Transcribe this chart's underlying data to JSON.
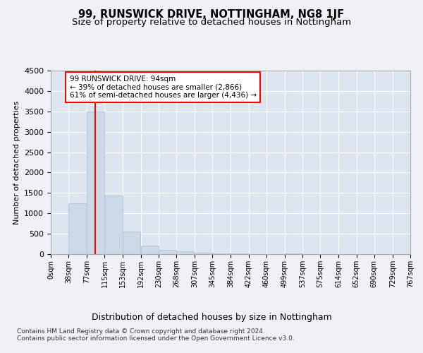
{
  "title": "99, RUNSWICK DRIVE, NOTTINGHAM, NG8 1JF",
  "subtitle": "Size of property relative to detached houses in Nottingham",
  "xlabel": "Distribution of detached houses by size in Nottingham",
  "ylabel": "Number of detached properties",
  "bar_color": "#ccd9e8",
  "bar_edge_color": "#aabdd4",
  "red_line_x": 94,
  "annotation_line1": "99 RUNSWICK DRIVE: 94sqm",
  "annotation_line2": "← 39% of detached houses are smaller (2,866)",
  "annotation_line3": "61% of semi-detached houses are larger (4,436) →",
  "bin_edges": [
    0,
    38,
    77,
    115,
    153,
    192,
    230,
    268,
    307,
    345,
    384,
    422,
    460,
    499,
    537,
    575,
    614,
    652,
    690,
    729,
    767
  ],
  "bin_labels": [
    "0sqm",
    "38sqm",
    "77sqm",
    "115sqm",
    "153sqm",
    "192sqm",
    "230sqm",
    "268sqm",
    "307sqm",
    "345sqm",
    "384sqm",
    "422sqm",
    "460sqm",
    "499sqm",
    "537sqm",
    "575sqm",
    "614sqm",
    "652sqm",
    "690sqm",
    "729sqm",
    "767sqm"
  ],
  "bar_heights": [
    8,
    1250,
    3500,
    1430,
    560,
    210,
    100,
    65,
    40,
    25,
    12,
    5,
    0,
    18,
    0,
    0,
    0,
    0,
    0,
    0
  ],
  "ylim": [
    0,
    4500
  ],
  "yticks": [
    0,
    500,
    1000,
    1500,
    2000,
    2500,
    3000,
    3500,
    4000,
    4500
  ],
  "background_color": "#eef2f7",
  "plot_bg_color": "#dde6f0",
  "footer_text": "Contains HM Land Registry data © Crown copyright and database right 2024.\nContains public sector information licensed under the Open Government Licence v3.0.",
  "grid_color": "#ffffff",
  "title_fontsize": 10.5,
  "subtitle_fontsize": 9.5
}
